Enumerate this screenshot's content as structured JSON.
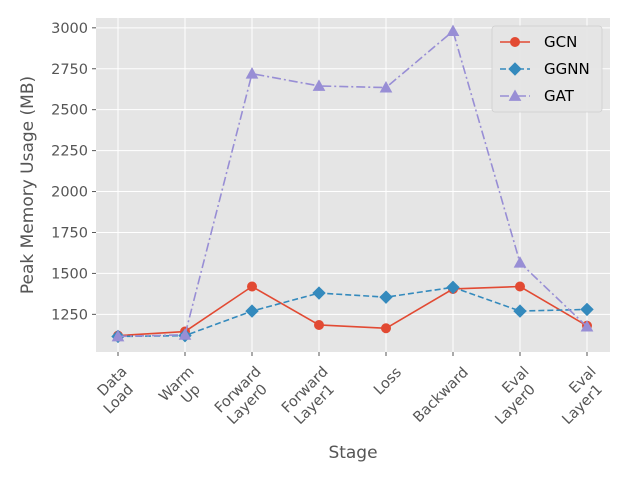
{
  "chart_data": {
    "type": "line",
    "xlabel": "Stage",
    "ylabel": "Peak Memory Usage (MB)",
    "categories": [
      [
        "Data",
        "Load"
      ],
      [
        "Warm",
        "Up"
      ],
      [
        "Forward",
        "Layer0"
      ],
      [
        "Forward",
        "Layer1"
      ],
      [
        "Loss"
      ],
      [
        "Backward"
      ],
      [
        "Eval",
        "Layer0"
      ],
      [
        "Eval",
        "Layer1"
      ]
    ],
    "ylim": [
      1020,
      3060
    ],
    "yticks": [
      1250,
      1500,
      1750,
      2000,
      2250,
      2500,
      2750,
      3000
    ],
    "grid": true,
    "legend_position": "top-right",
    "series": [
      {
        "name": "GCN",
        "color": "#E24A33",
        "line_style": "solid",
        "marker": "circle",
        "values": [
          1120,
          1145,
          1420,
          1185,
          1165,
          1405,
          1420,
          1180
        ]
      },
      {
        "name": "GGNN",
        "color": "#348ABD",
        "line_style": "dashed",
        "marker": "diamond",
        "values": [
          1115,
          1120,
          1270,
          1380,
          1355,
          1415,
          1270,
          1280
        ]
      },
      {
        "name": "GAT",
        "color": "#988ED5",
        "line_style": "dashdot",
        "marker": "triangle",
        "values": [
          1115,
          1125,
          2720,
          2645,
          2635,
          2980,
          1565,
          1175
        ]
      }
    ]
  }
}
